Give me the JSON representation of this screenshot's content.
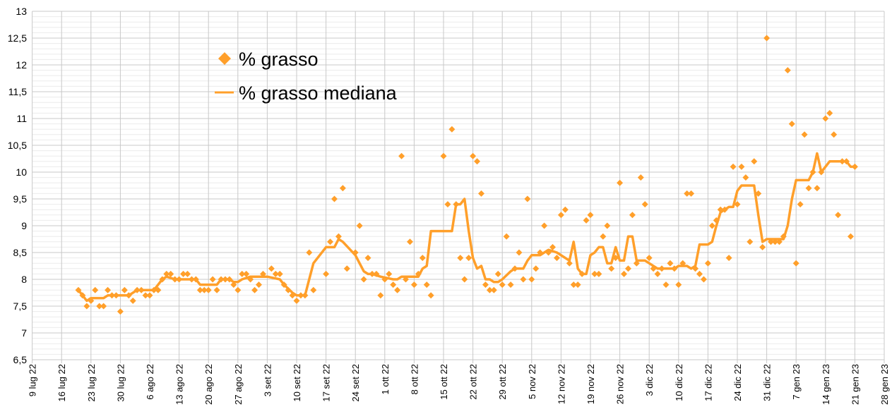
{
  "chart_data": {
    "type": "scatter",
    "title": "",
    "xlabel": "",
    "ylabel": "",
    "x_unit": "days since 9 lug 22",
    "xlim": [
      0,
      203
    ],
    "ylim": [
      6.5,
      13
    ],
    "y_major_step": 0.5,
    "y_minor_step": 0.1,
    "grid": true,
    "legend_position": "top-left",
    "x_ticks": [
      {
        "day": 0,
        "label": "9 lug 22"
      },
      {
        "day": 7,
        "label": "16 lug 22"
      },
      {
        "day": 14,
        "label": "23 lug 22"
      },
      {
        "day": 21,
        "label": "30 lug 22"
      },
      {
        "day": 28,
        "label": "6 ago 22"
      },
      {
        "day": 35,
        "label": "13 ago 22"
      },
      {
        "day": 42,
        "label": "20 ago 22"
      },
      {
        "day": 49,
        "label": "27 ago 22"
      },
      {
        "day": 56,
        "label": "3 set 22"
      },
      {
        "day": 63,
        "label": "10 set 22"
      },
      {
        "day": 70,
        "label": "17 set 22"
      },
      {
        "day": 77,
        "label": "24 set 22"
      },
      {
        "day": 84,
        "label": "1 ott 22"
      },
      {
        "day": 91,
        "label": "8 ott 22"
      },
      {
        "day": 98,
        "label": "15 ott 22"
      },
      {
        "day": 105,
        "label": "22 ott 22"
      },
      {
        "day": 112,
        "label": "29 ott 22"
      },
      {
        "day": 119,
        "label": "5 nov 22"
      },
      {
        "day": 126,
        "label": "12 nov 22"
      },
      {
        "day": 133,
        "label": "19 nov 22"
      },
      {
        "day": 140,
        "label": "26 nov 22"
      },
      {
        "day": 147,
        "label": "3 dic 22"
      },
      {
        "day": 154,
        "label": "10 dic 22"
      },
      {
        "day": 161,
        "label": "17 dic 22"
      },
      {
        "day": 168,
        "label": "24 dic 22"
      },
      {
        "day": 175,
        "label": "31 dic 22"
      },
      {
        "day": 182,
        "label": "7 gen 23"
      },
      {
        "day": 189,
        "label": "14 gen 23"
      },
      {
        "day": 196,
        "label": "21 gen 23"
      },
      {
        "day": 203,
        "label": "28 gen 23"
      }
    ],
    "y_ticks": [
      "6,5",
      "7",
      "7,5",
      "8",
      "8,5",
      "9",
      "9,5",
      "10",
      "10,5",
      "11",
      "11,5",
      "12",
      "12,5",
      "13"
    ],
    "y_tick_values": [
      6.5,
      7,
      7.5,
      8,
      8.5,
      9,
      9.5,
      10,
      10.5,
      11,
      11.5,
      12,
      12.5,
      13
    ],
    "series": [
      {
        "name": "% grasso",
        "kind": "scatter",
        "color": "#ff9f2a",
        "x": [
          11,
          12,
          13,
          14,
          15,
          16,
          17,
          18,
          19,
          20,
          21,
          22,
          23,
          24,
          25,
          26,
          27,
          28,
          29,
          30,
          31,
          32,
          33,
          34,
          35,
          36,
          37,
          38,
          39,
          40,
          41,
          42,
          43,
          44,
          45,
          46,
          47,
          48,
          49,
          50,
          51,
          52,
          53,
          54,
          55,
          57,
          58,
          59,
          60,
          61,
          62,
          63,
          64,
          65,
          66,
          67,
          70,
          71,
          72,
          73,
          74,
          75,
          77,
          78,
          79,
          80,
          81,
          82,
          83,
          84,
          85,
          86,
          87,
          88,
          89,
          90,
          91,
          92,
          93,
          94,
          95,
          98,
          99,
          100,
          101,
          102,
          103,
          104,
          105,
          106,
          107,
          108,
          109,
          110,
          111,
          112,
          113,
          114,
          115,
          116,
          117,
          118,
          119,
          120,
          121,
          122,
          123,
          124,
          125,
          126,
          127,
          128,
          129,
          130,
          131,
          132,
          133,
          134,
          135,
          136,
          137,
          138,
          139,
          140,
          141,
          142,
          143,
          144,
          145,
          146,
          147,
          148,
          149,
          150,
          151,
          152,
          153,
          154,
          155,
          156,
          157,
          158,
          159,
          160,
          161,
          162,
          163,
          164,
          165,
          166,
          167,
          168,
          169,
          170,
          171,
          172,
          173,
          174,
          175,
          176,
          177,
          178,
          179,
          180,
          181,
          182,
          183,
          184,
          185,
          186,
          187,
          188,
          189,
          190,
          191,
          192,
          193,
          194,
          195,
          196
        ],
        "y": [
          7.8,
          7.7,
          7.5,
          7.6,
          7.8,
          7.5,
          7.5,
          7.8,
          7.7,
          7.7,
          7.4,
          7.8,
          7.7,
          7.6,
          7.8,
          7.8,
          7.7,
          7.7,
          7.8,
          7.8,
          8.0,
          8.1,
          8.1,
          8.0,
          8.0,
          8.1,
          8.1,
          8.0,
          8.0,
          7.8,
          7.8,
          7.8,
          8.0,
          7.8,
          8.0,
          8.0,
          8.0,
          7.9,
          7.8,
          8.1,
          8.1,
          8.0,
          7.8,
          7.9,
          8.1,
          8.2,
          8.1,
          8.1,
          7.9,
          7.8,
          7.7,
          7.6,
          7.7,
          7.7,
          8.5,
          7.8,
          8.1,
          8.7,
          9.5,
          8.8,
          9.7,
          8.2,
          8.5,
          9.0,
          8.0,
          8.4,
          8.1,
          8.1,
          7.7,
          8.0,
          8.1,
          7.9,
          7.8,
          10.3,
          8.0,
          8.7,
          7.9,
          8.1,
          8.4,
          7.9,
          7.7,
          10.3,
          9.4,
          10.8,
          9.4,
          8.4,
          8.0,
          8.4,
          10.3,
          10.2,
          9.6,
          7.9,
          7.8,
          7.8,
          8.1,
          7.9,
          8.8,
          7.9,
          8.2,
          8.5,
          8.0,
          9.5,
          8.0,
          8.2,
          8.5,
          9.0,
          8.5,
          8.6,
          8.4,
          9.2,
          9.3,
          8.3,
          7.9,
          7.9,
          8.1,
          9.1,
          9.2,
          8.1,
          8.1,
          8.8,
          9.0,
          8.2,
          8.4,
          9.8,
          8.1,
          8.2,
          9.2,
          8.3,
          9.9,
          9.4,
          8.4,
          8.2,
          8.1,
          8.2,
          7.9,
          8.3,
          8.2,
          7.9,
          8.3,
          9.6,
          9.6,
          8.2,
          8.1,
          8.0,
          8.3,
          9.0,
          9.1,
          9.3,
          9.3,
          8.4,
          10.1,
          9.4,
          10.1,
          9.9,
          8.7,
          10.2,
          9.6,
          8.6,
          12.5,
          8.7,
          8.7,
          8.7,
          8.8,
          11.9,
          10.9,
          8.3,
          9.4,
          10.7,
          9.7,
          10.0,
          9.7,
          10.0,
          11.0,
          11.1,
          10.7,
          9.2,
          10.2,
          10.2,
          8.8,
          10.1
        ]
      },
      {
        "name": "% grasso mediana",
        "kind": "line",
        "color": "#ff9f2a",
        "x": [
          11,
          12,
          13,
          14,
          17,
          18,
          21,
          23,
          24,
          25,
          29,
          30,
          31,
          32,
          34,
          35,
          39,
          40,
          44,
          45,
          47,
          48,
          49,
          50,
          52,
          56,
          59,
          60,
          62,
          63,
          65,
          66,
          67,
          70,
          72,
          73,
          74,
          77,
          79,
          80,
          81,
          83,
          86,
          87,
          88,
          92,
          93,
          94,
          95,
          100,
          101,
          102,
          103,
          104,
          105,
          106,
          107,
          108,
          109,
          110,
          111,
          112,
          114,
          115,
          117,
          118,
          119,
          121,
          122,
          123,
          125,
          127,
          128,
          129,
          130,
          131,
          132,
          133,
          134,
          135,
          136,
          137,
          138,
          139,
          140,
          141,
          142,
          143,
          144,
          145,
          146,
          147,
          148,
          149,
          153,
          154,
          156,
          157,
          158,
          159,
          161,
          162,
          163,
          164,
          165,
          166,
          167,
          168,
          169,
          172,
          173,
          174,
          175,
          179,
          180,
          181,
          182,
          185,
          186,
          187,
          188,
          190,
          192,
          193,
          194,
          195,
          196
        ],
        "y": [
          7.8,
          7.7,
          7.6,
          7.65,
          7.65,
          7.7,
          7.7,
          7.7,
          7.75,
          7.8,
          7.8,
          7.9,
          8.0,
          8.05,
          8.0,
          8.0,
          8.0,
          7.9,
          7.9,
          8.0,
          8.0,
          7.95,
          7.95,
          8.0,
          8.05,
          8.05,
          8.0,
          7.9,
          7.75,
          7.7,
          7.7,
          8.0,
          8.3,
          8.6,
          8.6,
          8.75,
          8.7,
          8.45,
          8.15,
          8.1,
          8.1,
          8.05,
          8.0,
          8.0,
          8.05,
          8.05,
          8.2,
          8.25,
          8.9,
          8.9,
          9.4,
          9.4,
          9.5,
          8.9,
          8.4,
          8.2,
          8.25,
          8.0,
          8.0,
          7.95,
          7.95,
          8.0,
          8.15,
          8.2,
          8.2,
          8.35,
          8.45,
          8.45,
          8.5,
          8.55,
          8.5,
          8.4,
          8.35,
          8.7,
          8.2,
          8.1,
          8.1,
          8.45,
          8.5,
          8.6,
          8.6,
          8.3,
          8.3,
          8.6,
          8.35,
          8.35,
          8.8,
          8.8,
          8.35,
          8.35,
          8.35,
          8.3,
          8.25,
          8.2,
          8.2,
          8.25,
          8.25,
          8.2,
          8.25,
          8.65,
          8.65,
          8.7,
          9.0,
          9.25,
          9.3,
          9.35,
          9.35,
          9.65,
          9.75,
          9.75,
          9.2,
          8.7,
          8.75,
          8.75,
          9.0,
          9.5,
          9.85,
          9.85,
          10.0,
          10.35,
          10.0,
          10.2,
          10.2,
          10.2,
          10.2,
          10.1,
          10.1
        ]
      }
    ]
  }
}
